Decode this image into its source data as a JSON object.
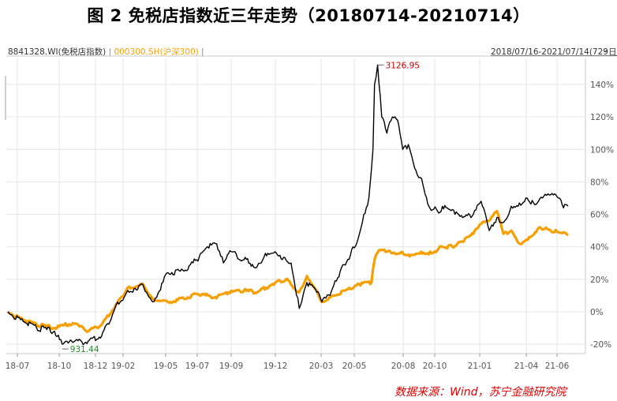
{
  "title": "图 2  免税店指数近三年走势（20180714-20210714）",
  "legend": {
    "series1": "8841328.WI(免税店指数)",
    "separator": " | ",
    "series2": "000300.SH(沪深300)",
    "trailing": " |"
  },
  "date_range": "2018/07/16-2021/07/14(729日)",
  "source": "数据来源：Wind，苏宁金融研究院",
  "colors": {
    "series1": "#000000",
    "series2": "#f5a000",
    "max_label": "#cc0000",
    "min_label": "#2a8a2a",
    "source": "#e00000"
  },
  "icons": {
    "range_menu": "chevron-down-icon"
  },
  "chart_data": {
    "type": "line",
    "title": "图 2  免税店指数近三年走势（20180714-20210714）",
    "x_tick_labels": [
      "18-07",
      "18-10",
      "18-12",
      "19-02",
      "19-05",
      "19-07",
      "19-09",
      "19-12",
      "20-03",
      "20-05",
      "20-08",
      "20-10",
      "21-01",
      "21-04",
      "21-06"
    ],
    "y_tick_labels": [
      "-20%",
      "0%",
      "20%",
      "40%",
      "60%",
      "80%",
      "100%",
      "120%",
      "140%"
    ],
    "ylim": [
      -24,
      150
    ],
    "y_unit": "%",
    "grid": true,
    "legend_position": "top-left",
    "annotations": {
      "max": "3126.95",
      "min": "931.44"
    },
    "series": [
      {
        "name": "8841328.WI(免税店指数)",
        "x": [
          "2018-07-16",
          "2018-08-15",
          "2018-09-10",
          "2018-10-15",
          "2018-10-30",
          "2018-11-20",
          "2018-12-20",
          "2019-01-15",
          "2019-02-10",
          "2019-03-05",
          "2019-04-05",
          "2019-04-25",
          "2019-05-25",
          "2019-06-25",
          "2019-07-20",
          "2019-08-10",
          "2019-08-25",
          "2019-09-10",
          "2019-09-25",
          "2019-10-20",
          "2019-11-15",
          "2019-12-01",
          "2019-12-20",
          "2020-01-10",
          "2020-01-20",
          "2020-02-05",
          "2020-02-20",
          "2020-03-10",
          "2020-03-20",
          "2020-04-05",
          "2020-04-25",
          "2020-05-15",
          "2020-05-30",
          "2020-06-10",
          "2020-06-20",
          "2020-06-28",
          "2020-07-01",
          "2020-07-07",
          "2020-07-15",
          "2020-07-25",
          "2020-08-05",
          "2020-08-15",
          "2020-08-25",
          "2020-09-05",
          "2020-09-20",
          "2020-10-01",
          "2020-10-15",
          "2020-11-01",
          "2020-11-20",
          "2020-12-05",
          "2020-12-20",
          "2021-01-10",
          "2021-01-25",
          "2021-02-10",
          "2021-02-25",
          "2021-03-10",
          "2021-03-25",
          "2021-04-10",
          "2021-04-25",
          "2021-05-10",
          "2021-05-25",
          "2021-06-10",
          "2021-06-25",
          "2021-07-05",
          "2021-07-14"
        ],
        "y": [
          0,
          -6,
          -10,
          -12,
          -20,
          -19,
          -18,
          -15,
          2,
          12,
          17,
          6,
          24,
          25,
          32,
          40,
          42,
          30,
          37,
          32,
          28,
          36,
          37,
          32,
          30,
          2,
          18,
          12,
          6,
          10,
          25,
          35,
          45,
          60,
          70,
          100,
          140,
          152,
          120,
          110,
          120,
          118,
          100,
          103,
          87,
          82,
          65,
          62,
          64,
          60,
          58,
          60,
          68,
          50,
          58,
          55,
          65,
          67,
          70,
          66,
          70,
          72,
          70,
          64,
          65
        ]
      },
      {
        "name": "000300.SH(沪深300)",
        "x": [
          "2018-07-16",
          "2018-08-15",
          "2018-09-10",
          "2018-10-15",
          "2018-11-20",
          "2018-12-20",
          "2019-01-15",
          "2019-02-10",
          "2019-03-05",
          "2019-04-05",
          "2019-04-25",
          "2019-05-25",
          "2019-06-25",
          "2019-07-20",
          "2019-08-25",
          "2019-09-20",
          "2019-10-20",
          "2019-11-15",
          "2019-12-20",
          "2020-01-10",
          "2020-02-05",
          "2020-02-20",
          "2020-03-10",
          "2020-03-20",
          "2020-04-15",
          "2020-05-15",
          "2020-06-01",
          "2020-06-25",
          "2020-07-01",
          "2020-07-10",
          "2020-07-25",
          "2020-08-20",
          "2020-09-10",
          "2020-09-30",
          "2020-10-20",
          "2020-11-10",
          "2020-11-30",
          "2020-12-20",
          "2021-01-10",
          "2021-01-25",
          "2021-02-10",
          "2021-02-25",
          "2021-03-10",
          "2021-03-25",
          "2021-04-10",
          "2021-05-01",
          "2021-05-20",
          "2021-06-10",
          "2021-06-25",
          "2021-07-14"
        ],
        "y": [
          0,
          -5,
          -8,
          -10,
          -7,
          -12,
          -8,
          3,
          14,
          17,
          8,
          6,
          8,
          11,
          9,
          12,
          13,
          12,
          18,
          20,
          12,
          22,
          13,
          6,
          10,
          14,
          17,
          18,
          32,
          38,
          37,
          36,
          35,
          37,
          36,
          40,
          40,
          43,
          48,
          54,
          56,
          62,
          48,
          50,
          42,
          46,
          52,
          50,
          49,
          47
        ]
      }
    ]
  }
}
